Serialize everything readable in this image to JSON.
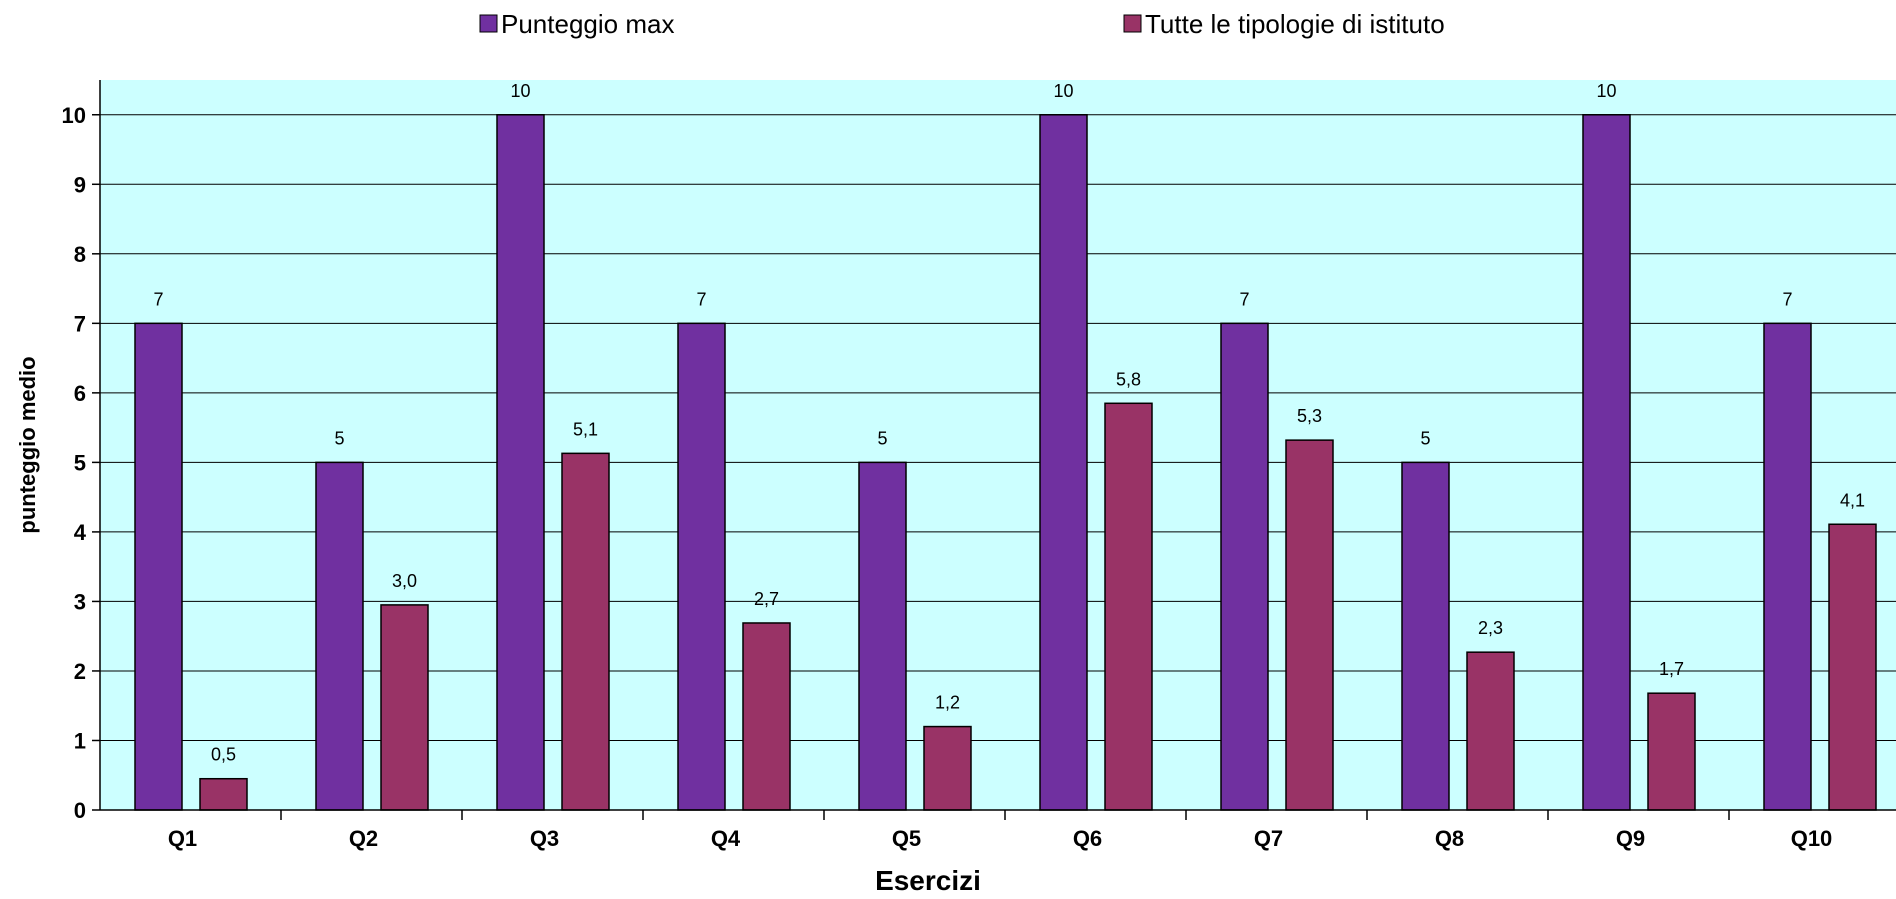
{
  "chart_data": {
    "type": "bar",
    "title": "",
    "xlabel": "Esercizi",
    "ylabel": "punteggio medio",
    "ylim": [
      0,
      10.5
    ],
    "yticks": [
      0,
      1,
      2,
      3,
      4,
      5,
      6,
      7,
      8,
      9,
      10
    ],
    "grid": true,
    "legend_position": "top",
    "categories": [
      "Q1",
      "Q2",
      "Q3",
      "Q4",
      "Q5",
      "Q6",
      "Q7",
      "Q8",
      "Q9",
      "Q10"
    ],
    "series": [
      {
        "name": "Punteggio max",
        "color": "#7030a0",
        "values": [
          7,
          5,
          10,
          7,
          5,
          10,
          7,
          5,
          10,
          7
        ],
        "labels": [
          "7",
          "5",
          "10",
          "7",
          "5",
          "10",
          "7",
          "5",
          "10",
          "7"
        ]
      },
      {
        "name": "Tutte le tipologie di istituto",
        "color": "#993366",
        "values": [
          0.45,
          2.95,
          5.13,
          2.69,
          1.2,
          5.85,
          5.32,
          2.27,
          1.68,
          4.11
        ],
        "labels": [
          "0,5",
          "3,0",
          "5,1",
          "2,7",
          "1,2",
          "5,8",
          "5,3",
          "2,3",
          "1,7",
          "4,1"
        ]
      }
    ],
    "plot_background": "#ccffff"
  }
}
